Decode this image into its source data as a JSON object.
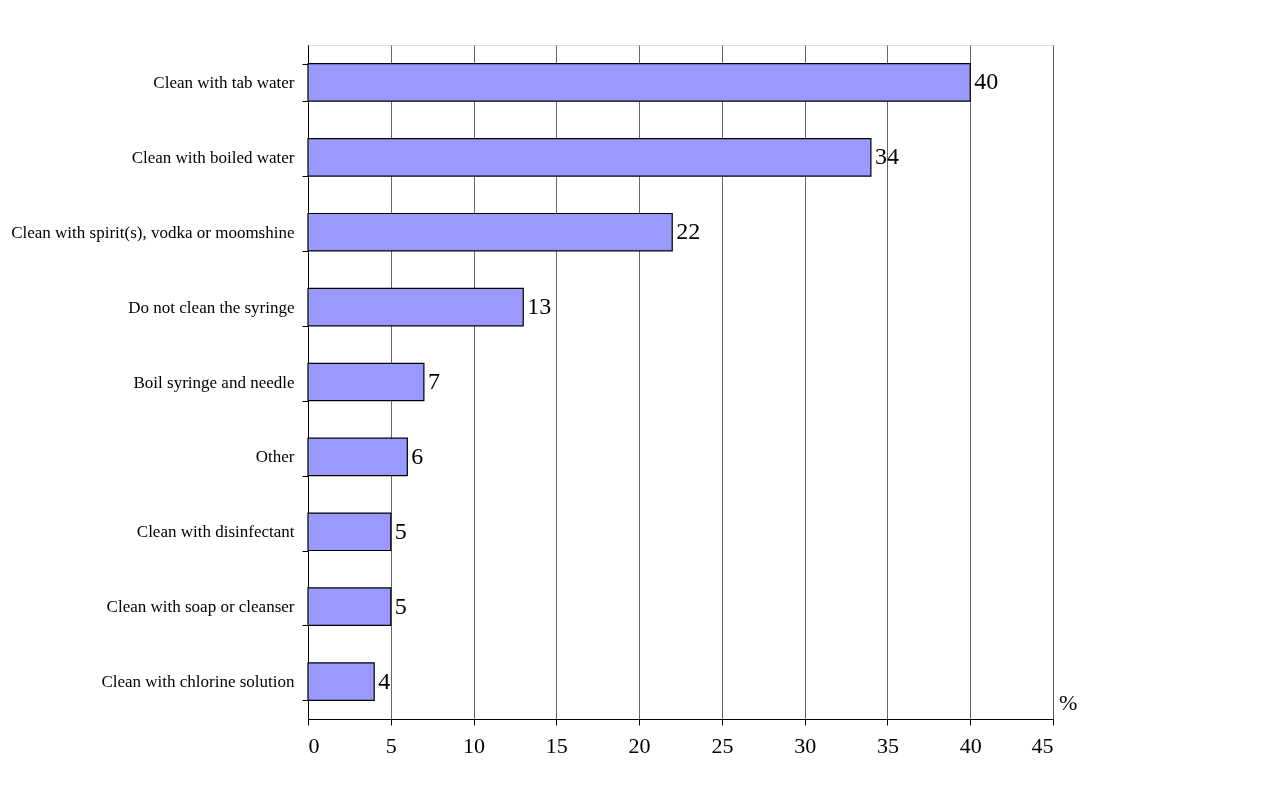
{
  "chart_data": {
    "type": "bar",
    "orientation": "horizontal",
    "xlabel": "%",
    "categories": [
      "Clean with tab water",
      "Clean with boiled water",
      "Clean with spirit(s), vodka or moomshine",
      "Do not clean the syringe",
      "Boil syringe and needle",
      "Other",
      "Clean with disinfectant",
      "Clean with soap or cleanser",
      "Clean with chlorine solution"
    ],
    "values": [
      40,
      34,
      22,
      13,
      7,
      6,
      5,
      5,
      4
    ],
    "color": "#9999ff",
    "xlim": [
      0,
      45
    ],
    "xticks": [
      0,
      5,
      10,
      15,
      20,
      25,
      30,
      35,
      40,
      45
    ],
    "grid": "x",
    "data_labels": true
  }
}
